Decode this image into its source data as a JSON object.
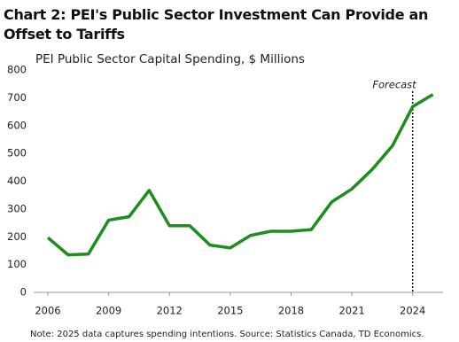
{
  "chart_data": {
    "type": "line",
    "title": "Chart 2: PEI's Public Sector Investment Can Provide an Offset to Tariffs",
    "subtitle": "PEI Public Sector Capital Spending, $ Millions",
    "note": "Note: 2025 data captures spending intentions. Source: Statistics Canada, TD Economics.",
    "annotation": "Forecast",
    "forecast_x": 2024,
    "x": [
      2006,
      2007,
      2008,
      2009,
      2010,
      2011,
      2012,
      2013,
      2014,
      2015,
      2016,
      2017,
      2018,
      2019,
      2020,
      2021,
      2022,
      2023,
      2024,
      2025
    ],
    "series": [
      {
        "name": "PEI Public Sector Capital Spending",
        "color": "#1e8c1e",
        "values": [
          197,
          135,
          138,
          260,
          272,
          367,
          240,
          240,
          170,
          160,
          205,
          220,
          220,
          226,
          325,
          372,
          442,
          527,
          668,
          712
        ]
      }
    ],
    "xlim": [
      2005.3,
      2025.5
    ],
    "xticks": [
      2006,
      2009,
      2012,
      2015,
      2018,
      2021,
      2024
    ],
    "ylim": [
      0,
      800
    ],
    "yticks": [
      0,
      100,
      200,
      300,
      400,
      500,
      600,
      700,
      800
    ],
    "grid": false
  }
}
